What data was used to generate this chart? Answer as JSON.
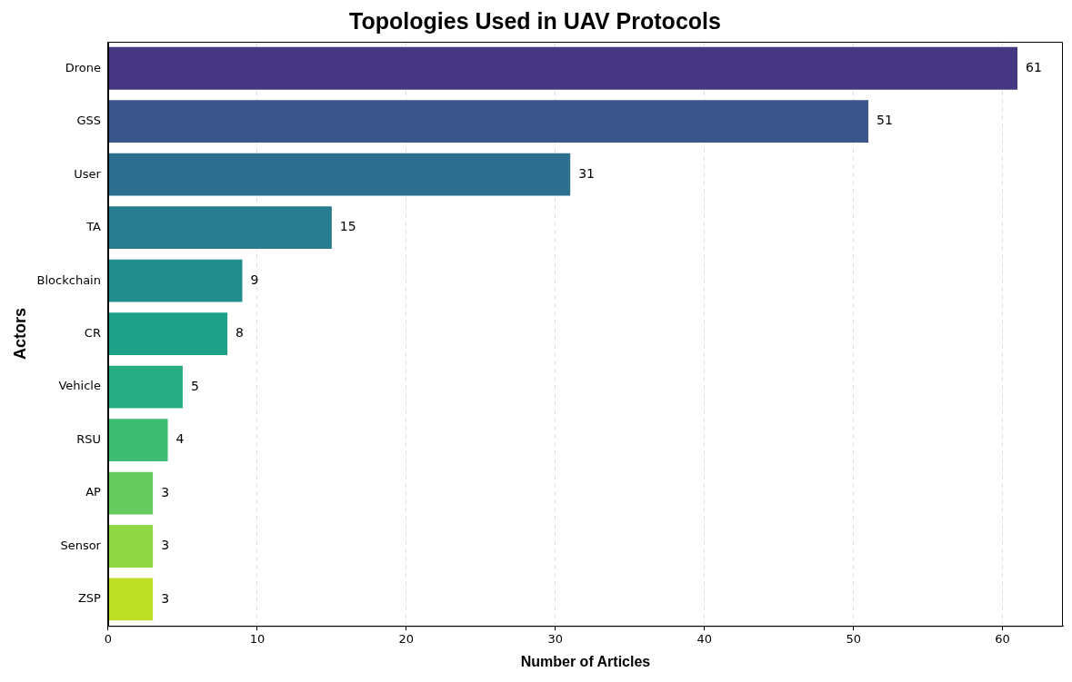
{
  "chart_data": {
    "type": "bar",
    "orientation": "horizontal",
    "title": "Topologies Used in UAV Protocols",
    "xlabel": "Number of Articles",
    "ylabel": "Actors",
    "categories": [
      "Drone",
      "GSS",
      "User",
      "TA",
      "Blockchain",
      "CR",
      "Vehicle",
      "RSU",
      "AP",
      "Sensor",
      "ZSP"
    ],
    "values": [
      61,
      51,
      31,
      15,
      9,
      8,
      5,
      4,
      3,
      3,
      3
    ],
    "colors": [
      "#453781",
      "#39558c",
      "#2d6f8e",
      "#287c8e",
      "#218e8d",
      "#1fa088",
      "#27ad81",
      "#3fbc73",
      "#65cb5e",
      "#8fd744",
      "#bddf26"
    ],
    "xlim": [
      0,
      64.05
    ],
    "xticks": [
      0,
      10,
      20,
      30,
      40,
      50,
      60
    ],
    "grid": "x",
    "legend": false,
    "data_labels": true
  }
}
